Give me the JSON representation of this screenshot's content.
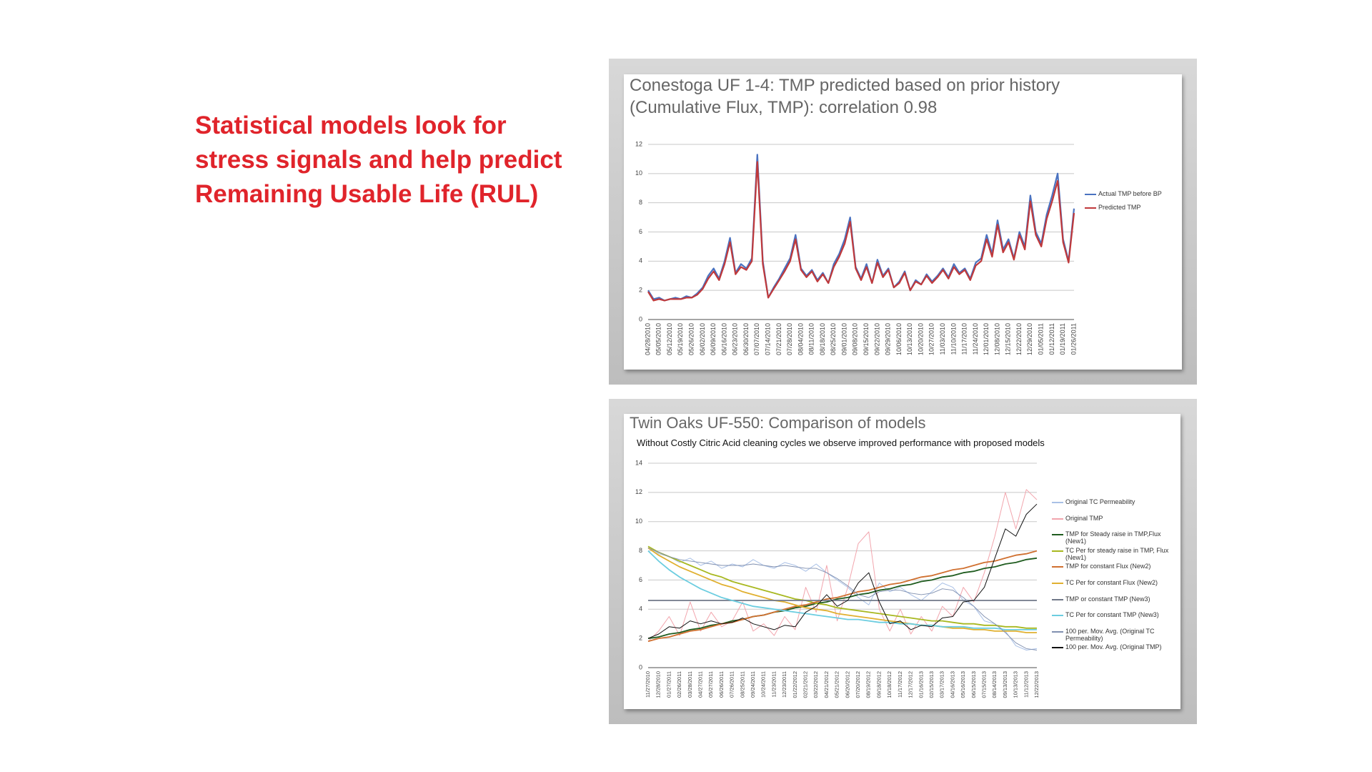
{
  "slide_text": "Statistical models look for stress signals and help predict Remaining Usable Life (RUL)",
  "chart_data": [
    {
      "type": "line",
      "title": "Conestoga UF 1-4: TMP predicted based on prior history (Cumulative Flux, TMP): correlation 0.98",
      "categories": [
        "04/28/2010",
        null,
        "05/05/2010",
        null,
        "05/12/2010",
        null,
        "05/19/2010",
        null,
        "05/26/2010",
        null,
        "06/02/2010",
        null,
        "06/09/2010",
        null,
        "06/16/2010",
        null,
        "06/23/2010",
        null,
        "06/30/2010",
        null,
        "07/07/2010",
        null,
        "07/14/2010",
        null,
        "07/21/2010",
        null,
        "07/28/2010",
        null,
        "08/04/2010",
        null,
        "08/11/2010",
        null,
        "08/18/2010",
        null,
        "08/25/2010",
        null,
        "09/01/2010",
        null,
        "09/08/2010",
        null,
        "09/15/2010",
        null,
        "09/22/2010",
        null,
        "09/29/2010",
        null,
        "10/06/2010",
        null,
        "10/13/2010",
        null,
        "10/20/2010",
        null,
        "10/27/2010",
        null,
        "11/03/2010",
        null,
        "11/10/2010",
        null,
        "11/17/2010",
        null,
        "11/24/2010",
        null,
        "12/01/2010",
        null,
        "12/08/2010",
        null,
        "12/15/2010",
        null,
        "12/22/2010",
        null,
        "12/29/2010",
        null,
        "01/05/2011",
        null,
        "01/12/2011",
        null,
        "01/19/2011",
        null,
        "01/26/2011"
      ],
      "series": [
        {
          "name": "Actual TMP before BP",
          "color": "#4a72c0",
          "values": [
            2.0,
            1.4,
            1.5,
            1.3,
            1.4,
            1.5,
            1.4,
            1.6,
            1.5,
            1.8,
            2.2,
            3.0,
            3.5,
            2.8,
            4.0,
            5.6,
            3.2,
            3.8,
            3.5,
            4.2,
            11.3,
            4.0,
            1.5,
            2.2,
            2.8,
            3.5,
            4.2,
            5.8,
            3.5,
            3.0,
            3.4,
            2.7,
            3.2,
            2.5,
            3.8,
            4.5,
            5.5,
            7.0,
            3.6,
            2.8,
            3.8,
            2.5,
            4.1,
            3.0,
            3.5,
            2.2,
            2.6,
            3.3,
            2.0,
            2.7,
            2.4,
            3.1,
            2.6,
            3.0,
            3.5,
            2.9,
            3.8,
            3.2,
            3.5,
            2.8,
            3.9,
            4.2,
            5.8,
            4.5,
            6.8,
            4.8,
            5.5,
            4.2,
            6.0,
            5.0,
            8.5,
            6.0,
            5.2,
            7.2,
            8.5,
            10.0,
            5.5,
            4.0,
            7.6
          ]
        },
        {
          "name": "Predicted TMP",
          "color": "#c0393b",
          "values": [
            1.9,
            1.3,
            1.4,
            1.3,
            1.4,
            1.4,
            1.4,
            1.5,
            1.5,
            1.7,
            2.1,
            2.8,
            3.3,
            2.7,
            3.8,
            5.3,
            3.1,
            3.6,
            3.4,
            4.0,
            10.8,
            3.8,
            1.5,
            2.1,
            2.7,
            3.3,
            4.0,
            5.5,
            3.4,
            2.9,
            3.3,
            2.6,
            3.1,
            2.5,
            3.6,
            4.3,
            5.2,
            6.7,
            3.5,
            2.7,
            3.6,
            2.5,
            3.9,
            2.9,
            3.4,
            2.2,
            2.5,
            3.2,
            2.0,
            2.6,
            2.4,
            3.0,
            2.5,
            2.9,
            3.4,
            2.8,
            3.6,
            3.1,
            3.4,
            2.7,
            3.7,
            4.0,
            5.5,
            4.3,
            6.5,
            4.6,
            5.3,
            4.1,
            5.8,
            4.8,
            8.1,
            5.8,
            5.0,
            6.9,
            8.1,
            9.5,
            5.3,
            3.9,
            7.3
          ]
        }
      ],
      "ylim": [
        0,
        12
      ],
      "yticks": [
        0,
        2,
        4,
        6,
        8,
        10,
        12
      ],
      "grid": true
    },
    {
      "type": "line",
      "title": "Twin Oaks UF-550: Comparison of models",
      "subtitle": "Without Costly Citric Acid cleaning cycles we observe improved performance with proposed models",
      "categories": [
        "11/27/2010",
        "12/28/2010",
        "01/27/2011",
        "02/26/2011",
        "03/28/2011",
        "04/27/2011",
        "05/27/2011",
        "06/26/2011",
        "07/26/2011",
        "08/25/2011",
        "09/24/2011",
        "10/24/2011",
        "11/23/2011",
        "12/23/2011",
        "01/22/2012",
        "02/21/2012",
        "03/22/2012",
        "04/21/2012",
        "05/21/2012",
        "06/20/2012",
        "07/20/2012",
        "08/19/2012",
        "09/18/2012",
        "10/18/2012",
        "11/17/2012",
        "12/17/2012",
        "01/16/2013",
        "02/15/2013",
        "03/17/2013",
        "04/16/2013",
        "05/16/2013",
        "06/15/2013",
        "07/15/2013",
        "08/14/2013",
        "09/13/2013",
        "10/13/2013",
        "11/12/2013",
        "12/22/2013"
      ],
      "series": [
        {
          "name": "Original TC Permeability",
          "color": "#a9c0e6",
          "values": [
            8.3,
            7.8,
            7.6,
            7.2,
            7.5,
            7.0,
            7.3,
            6.8,
            7.1,
            6.9,
            7.4,
            7.0,
            6.8,
            7.2,
            7.0,
            6.6,
            7.1,
            6.5,
            6.0,
            5.5,
            4.8,
            4.3,
            5.8,
            5.2,
            5.5,
            5.0,
            4.6,
            5.2,
            5.8,
            5.5,
            4.6,
            4.2,
            3.2,
            3.0,
            2.5,
            1.5,
            1.2,
            1.3
          ]
        },
        {
          "name": "Original TMP",
          "color": "#f2a5ad",
          "values": [
            1.8,
            2.5,
            3.5,
            2.2,
            4.5,
            2.5,
            3.8,
            2.8,
            3.2,
            4.5,
            2.5,
            3.0,
            2.2,
            3.5,
            2.6,
            5.5,
            3.8,
            7.0,
            3.2,
            5.5,
            8.5,
            9.3,
            4.0,
            2.5,
            4.0,
            2.3,
            3.5,
            2.5,
            4.2,
            3.5,
            5.5,
            4.5,
            6.5,
            9.0,
            12.0,
            9.5,
            12.2,
            11.5
          ]
        },
        {
          "name": "TMP for Steady raise in TMP,Flux (New1)",
          "color": "#1f5c1f",
          "values": [
            2.0,
            2.1,
            2.3,
            2.4,
            2.6,
            2.7,
            2.9,
            3.0,
            3.2,
            3.3,
            3.5,
            3.6,
            3.8,
            3.9,
            4.1,
            4.2,
            4.4,
            4.5,
            4.7,
            4.8,
            5.0,
            5.1,
            5.3,
            5.4,
            5.6,
            5.7,
            5.9,
            6.0,
            6.2,
            6.3,
            6.5,
            6.6,
            6.8,
            6.9,
            7.1,
            7.2,
            7.4,
            7.5
          ]
        },
        {
          "name": "TC Per for steady raise in TMP, Flux (New1)",
          "color": "#a8b820",
          "values": [
            8.3,
            7.9,
            7.6,
            7.3,
            7.0,
            6.7,
            6.4,
            6.2,
            5.9,
            5.7,
            5.5,
            5.3,
            5.1,
            4.9,
            4.7,
            4.6,
            4.4,
            4.3,
            4.1,
            4.0,
            3.9,
            3.8,
            3.7,
            3.6,
            3.5,
            3.4,
            3.3,
            3.2,
            3.2,
            3.1,
            3.0,
            3.0,
            2.9,
            2.9,
            2.8,
            2.8,
            2.7,
            2.7
          ]
        },
        {
          "name": "TMP for constant Flux (New2)",
          "color": "#d07030",
          "values": [
            1.8,
            2.0,
            2.1,
            2.3,
            2.5,
            2.6,
            2.8,
            3.0,
            3.1,
            3.3,
            3.5,
            3.6,
            3.8,
            4.0,
            4.2,
            4.3,
            4.5,
            4.7,
            4.8,
            5.0,
            5.2,
            5.3,
            5.5,
            5.7,
            5.8,
            6.0,
            6.2,
            6.3,
            6.5,
            6.7,
            6.8,
            7.0,
            7.2,
            7.3,
            7.5,
            7.7,
            7.8,
            8.0
          ]
        },
        {
          "name": "TC Per for constant Flux (New2)",
          "color": "#e0b030",
          "values": [
            8.2,
            7.7,
            7.3,
            6.9,
            6.6,
            6.3,
            6.0,
            5.7,
            5.5,
            5.2,
            5.0,
            4.8,
            4.6,
            4.5,
            4.3,
            4.1,
            4.0,
            3.9,
            3.7,
            3.6,
            3.5,
            3.4,
            3.3,
            3.2,
            3.1,
            3.0,
            2.9,
            2.9,
            2.8,
            2.7,
            2.7,
            2.6,
            2.6,
            2.5,
            2.5,
            2.5,
            2.4,
            2.4
          ]
        },
        {
          "name": "TMP or constant TMP (New3)",
          "color": "#707888",
          "values": [
            4.6,
            4.6,
            4.6,
            4.6,
            4.6,
            4.6,
            4.6,
            4.6,
            4.6,
            4.6,
            4.6,
            4.6,
            4.6,
            4.6,
            4.6,
            4.6,
            4.6,
            4.6,
            4.6,
            4.6,
            4.6,
            4.6,
            4.6,
            4.6,
            4.6,
            4.6,
            4.6,
            4.6,
            4.6,
            4.6,
            4.6,
            4.6,
            4.6,
            4.6,
            4.6,
            4.6,
            4.6,
            4.6
          ]
        },
        {
          "name": "TC Per for constant TMP (New3)",
          "color": "#6ccde0",
          "values": [
            8.0,
            7.3,
            6.7,
            6.2,
            5.8,
            5.4,
            5.1,
            4.8,
            4.6,
            4.4,
            4.2,
            4.1,
            4.0,
            3.9,
            3.8,
            3.7,
            3.6,
            3.5,
            3.4,
            3.3,
            3.3,
            3.2,
            3.1,
            3.1,
            3.0,
            3.0,
            2.9,
            2.9,
            2.8,
            2.8,
            2.8,
            2.7,
            2.7,
            2.7,
            2.6,
            2.6,
            2.6,
            2.6
          ]
        },
        {
          "name": "100 per. Mov. Avg. (Original TC Permeability)",
          "color": "#8090b0",
          "values": [
            8.2,
            7.9,
            7.6,
            7.4,
            7.3,
            7.2,
            7.1,
            7.0,
            7.0,
            7.0,
            7.1,
            7.0,
            6.9,
            7.0,
            6.9,
            6.8,
            6.8,
            6.5,
            6.1,
            5.6,
            5.0,
            4.8,
            5.2,
            5.3,
            5.3,
            5.1,
            5.0,
            5.1,
            5.4,
            5.3,
            4.8,
            4.2,
            3.5,
            3.0,
            2.4,
            1.7,
            1.3,
            1.2
          ]
        },
        {
          "name": "100 per. Mov. Avg. (Original TMP)",
          "color": "#111111",
          "values": [
            2.0,
            2.3,
            2.8,
            2.7,
            3.2,
            3.0,
            3.2,
            3.0,
            3.1,
            3.4,
            3.0,
            2.8,
            2.6,
            2.9,
            2.8,
            3.8,
            4.2,
            5.0,
            4.2,
            4.6,
            5.8,
            6.5,
            4.5,
            3.0,
            3.2,
            2.6,
            2.9,
            2.8,
            3.4,
            3.5,
            4.5,
            4.6,
            5.5,
            7.5,
            9.5,
            9.0,
            10.5,
            11.2
          ]
        }
      ],
      "ylim": [
        0,
        14
      ],
      "yticks": [
        0,
        2,
        4,
        6,
        8,
        10,
        12,
        14
      ],
      "grid": true
    }
  ]
}
